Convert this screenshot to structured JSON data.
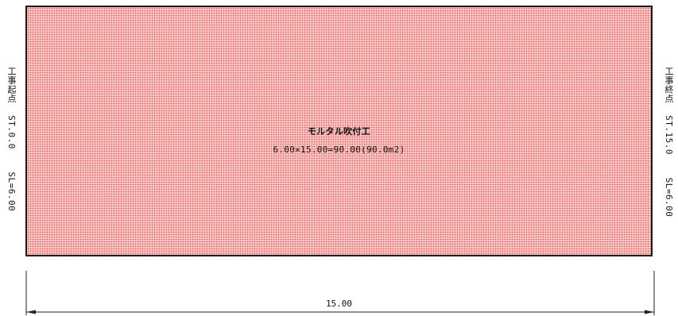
{
  "area": {
    "title": "モルタル吹付工",
    "formula": "6.00×15.00=90.00(90.0m2)"
  },
  "start_label": {
    "name": "工事起点",
    "station": "ST.0.0",
    "slope_length": "SL=6.00"
  },
  "end_label": {
    "name": "工事終点",
    "station": "ST.15.0",
    "slope_length": "SL=6.00"
  },
  "dimension": {
    "value": "15.00"
  },
  "colors": {
    "fill": "#f7c6c6",
    "hatch": "#e05a5a",
    "outline": "#1a1a1a"
  }
}
